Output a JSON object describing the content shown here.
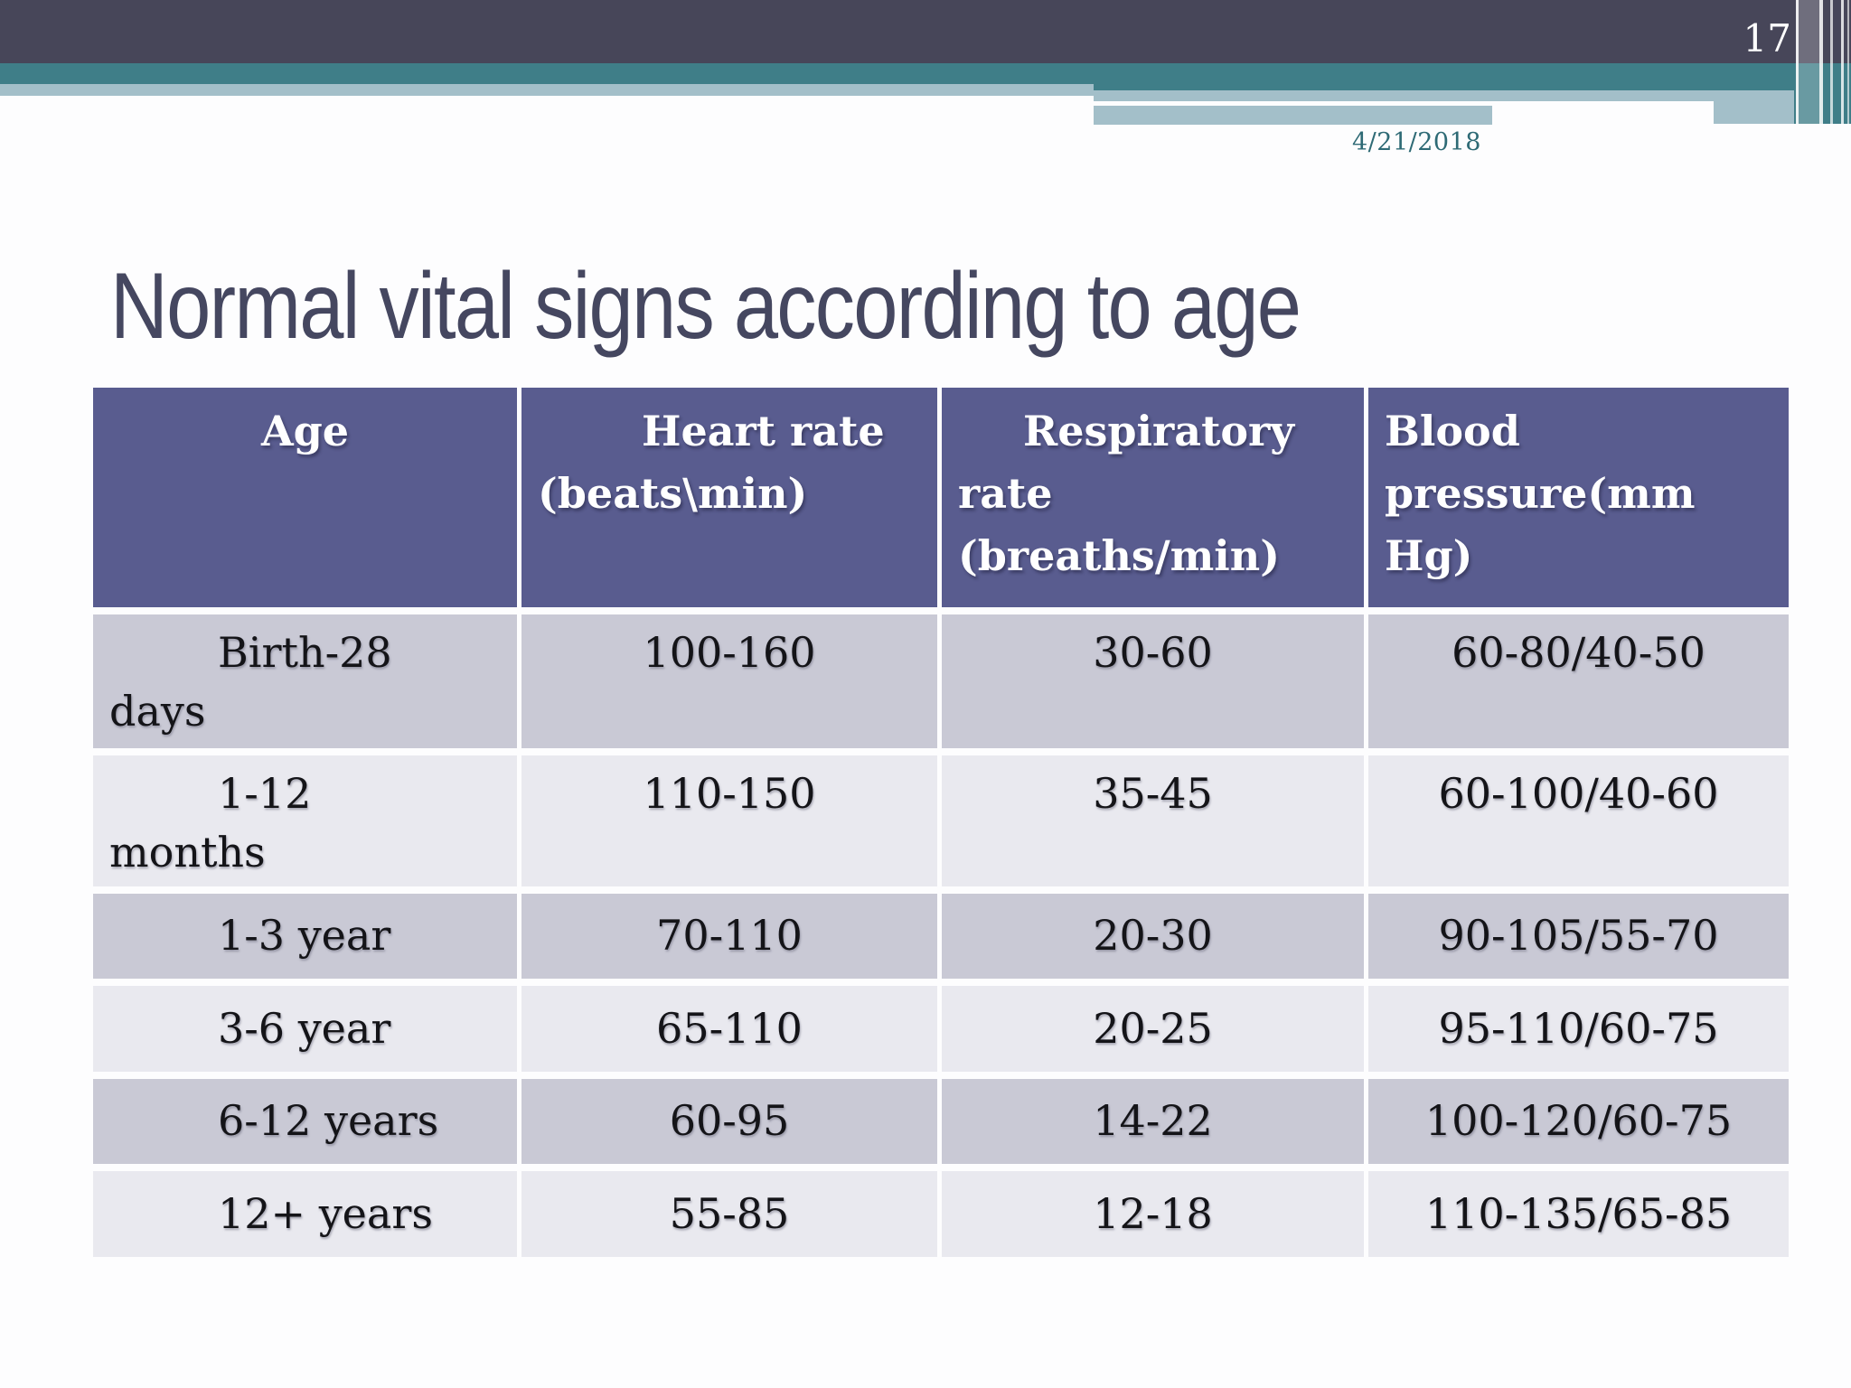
{
  "page": {
    "number": "17",
    "date": "4/21/2018"
  },
  "title": "Normal vital signs according to age",
  "table": {
    "header": [
      {
        "lines": [
          "Age"
        ]
      },
      {
        "lines": [
          "Heart rate",
          "(beats\\min)"
        ]
      },
      {
        "lines": [
          "Respiratory",
          "rate",
          "(breaths/min)"
        ]
      },
      {
        "lines": [
          "Blood",
          "pressure(mm",
          "Hg)"
        ]
      }
    ],
    "rows": [
      {
        "cells": [
          [
            "Birth-28",
            "days"
          ],
          [
            "100-160"
          ],
          [
            "30-60"
          ],
          [
            "60-80/40-50"
          ]
        ]
      },
      {
        "cells": [
          [
            "1-12",
            "months"
          ],
          [
            "110-150"
          ],
          [
            "35-45"
          ],
          [
            "60-100/40-60"
          ]
        ]
      },
      {
        "cells": [
          [
            "1-3 year"
          ],
          [
            "70-110"
          ],
          [
            "20-30"
          ],
          [
            "90-105/55-70"
          ]
        ]
      },
      {
        "cells": [
          [
            "3-6 year"
          ],
          [
            "65-110"
          ],
          [
            "20-25"
          ],
          [
            "95-110/60-75"
          ]
        ]
      },
      {
        "cells": [
          [
            "6-12 years"
          ],
          [
            "60-95"
          ],
          [
            "14-22"
          ],
          [
            "100-120/60-75"
          ]
        ]
      },
      {
        "cells": [
          [
            "12+ years"
          ],
          [
            "55-85"
          ],
          [
            "12-18"
          ],
          [
            "110-135/65-85"
          ]
        ]
      }
    ]
  },
  "colors": {
    "darkbar": "#474659",
    "teal": "#3f7e88",
    "light": "#a3bfc9",
    "header": "#595c8f",
    "row_a": "#c9c9d5",
    "row_b": "#e9e9ef",
    "title": "#454760",
    "date": "#2e6a75"
  }
}
